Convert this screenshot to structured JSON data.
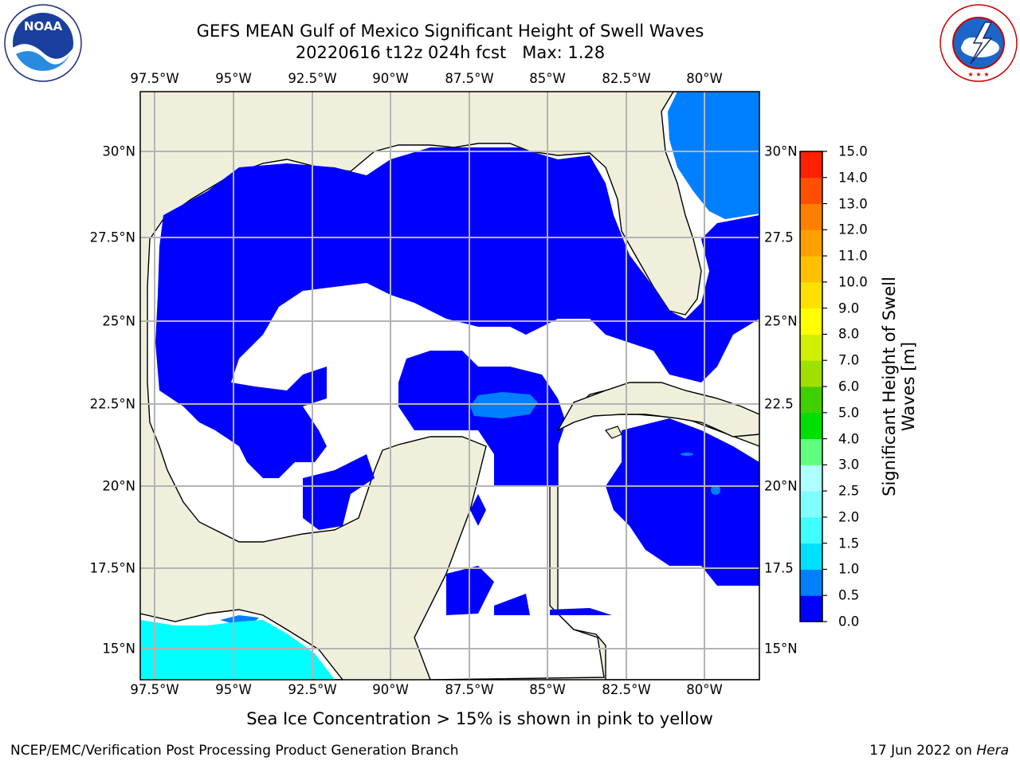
{
  "title": {
    "line1": "GEFS MEAN Gulf of Mexico Significant Height of Swell Waves",
    "line2": "20220616 t12z 024h fcst   Max: 1.28"
  },
  "logos": {
    "noaa": {
      "text": "NOAA",
      "ring_text": "NATIONAL OCEANIC AND ATMOSPHERIC ADMINISTRATION · U.S. DEPARTMENT OF COMMERCE"
    },
    "nws": {
      "ring_text": "NATIONAL WEATHER SERVICE"
    }
  },
  "map": {
    "lon_labels": [
      "97.5°W",
      "95°W",
      "92.5°W",
      "90°W",
      "87.5°W",
      "85°W",
      "82.5°W",
      "80°W"
    ],
    "lat_labels_left": [
      "30°N",
      "27.5°N",
      "25°N",
      "22.5°N",
      "20°N",
      "17.5°N",
      "15°N"
    ],
    "lat_labels_right": [
      "30°N",
      "27.5",
      "25°N",
      "22.5",
      "20°N",
      "17.5",
      "15°N"
    ],
    "colors": {
      "land": "#efefdc",
      "ocean_zero": "#ffffff",
      "grid": "#b4b4b4"
    }
  },
  "colorbar": {
    "label": "Significant Height of Swell Waves [m]",
    "ticks": [
      "0.0",
      "0.5",
      "1.0",
      "1.5",
      "2.0",
      "2.5",
      "3.0",
      "4.0",
      "5.0",
      "6.0",
      "7.0",
      "8.0",
      "9.0",
      "10.0",
      "11.0",
      "12.0",
      "13.0",
      "14.0",
      "15.0"
    ],
    "colors": [
      "#0000ff",
      "#0080ff",
      "#00e0ff",
      "#40ffff",
      "#80ffff",
      "#b0ffff",
      "#60ff80",
      "#00e000",
      "#40d000",
      "#a0e000",
      "#d0f000",
      "#ffff00",
      "#ffe000",
      "#ffc000",
      "#ffa000",
      "#ff8000",
      "#ff5000",
      "#ff2000",
      "#ff0000"
    ]
  },
  "caption": "Sea Ice Concentration > 15% is shown in pink to yellow",
  "footer": {
    "left": "NCEP/EMC/Verification Post Processing Product Generation Branch",
    "right_date": "17 Jun 2022 on ",
    "right_host": "Hera"
  }
}
